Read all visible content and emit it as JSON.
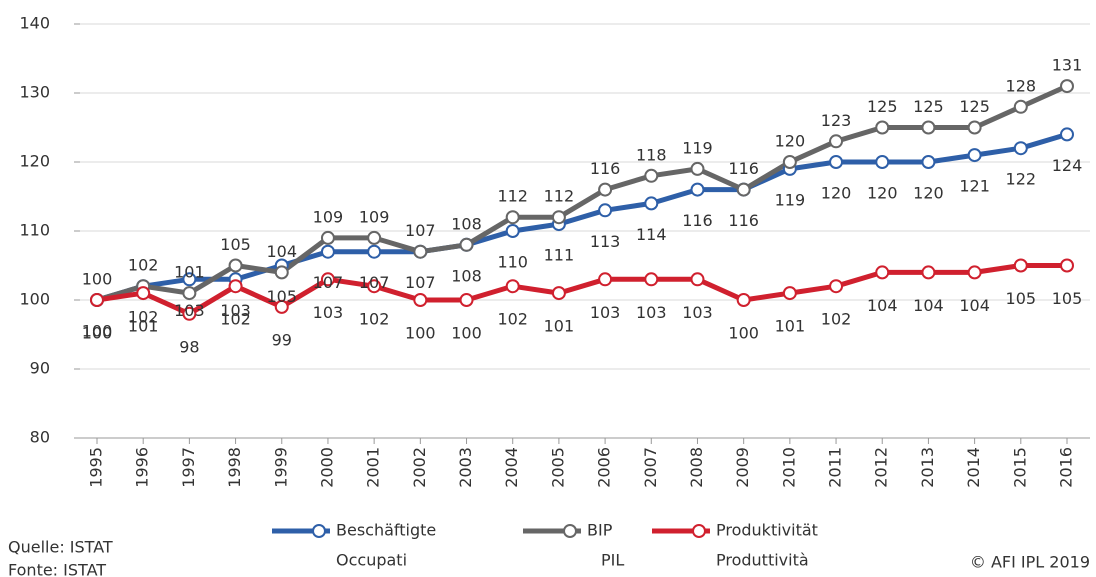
{
  "chart_data": {
    "type": "line",
    "categories": [
      "1995",
      "1996",
      "1997",
      "1998",
      "1999",
      "2000",
      "2001",
      "2002",
      "2003",
      "2004",
      "2005",
      "2006",
      "2007",
      "2008",
      "2009",
      "2010",
      "2011",
      "2012",
      "2013",
      "2014",
      "2015",
      "2016"
    ],
    "series": [
      {
        "name": "Beschäftigte",
        "name_it": "Occupati",
        "color": "#2e5fa8",
        "values": [
          100,
          102,
          103,
          103,
          105,
          107,
          107,
          107,
          108,
          110,
          111,
          113,
          114,
          116,
          116,
          119,
          120,
          120,
          120,
          121,
          122,
          124
        ]
      },
      {
        "name": "BIP",
        "name_it": "PIL",
        "color": "#666666",
        "values": [
          100,
          102,
          101,
          105,
          104,
          109,
          109,
          107,
          108,
          112,
          112,
          116,
          118,
          119,
          116,
          120,
          123,
          125,
          125,
          125,
          128,
          131
        ]
      },
      {
        "name": "Produktivität",
        "name_it": "Produttività",
        "color": "#d0202e",
        "values": [
          100,
          101,
          98,
          102,
          99,
          103,
          102,
          100,
          100,
          102,
          101,
          103,
          103,
          103,
          100,
          101,
          102,
          104,
          104,
          104,
          105,
          105
        ]
      }
    ],
    "ylim": [
      80,
      140
    ],
    "yticks": [
      80,
      90,
      100,
      110,
      120,
      130,
      140
    ],
    "grid": true,
    "legend": "bottom",
    "source_de": "Quelle: ISTAT",
    "source_it": "Fonte: ISTAT",
    "copyright": "© AFI IPL 2019"
  }
}
